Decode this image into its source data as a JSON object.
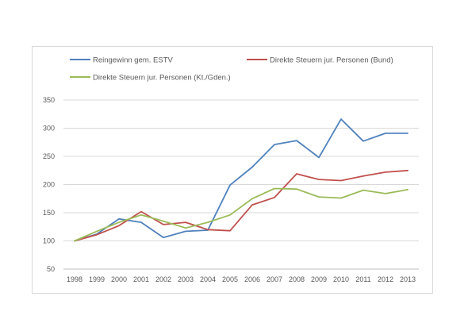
{
  "chart_data": {
    "type": "line",
    "title": "",
    "xlabel": "",
    "ylabel": "",
    "x": [
      "1998",
      "1999",
      "2000",
      "2001",
      "2002",
      "2003",
      "2004",
      "2005",
      "2006",
      "2007",
      "2008",
      "2009",
      "2010",
      "2011",
      "2012",
      "2013"
    ],
    "ylim": [
      50,
      350
    ],
    "yticks": [
      50,
      100,
      150,
      200,
      250,
      300,
      350
    ],
    "grid": true,
    "legend_position": "top",
    "series": [
      {
        "name": "Reingewinn gem. ESTV",
        "color": "#4f81bd",
        "values": [
          100,
          112,
          139,
          133,
          106,
          117,
          119,
          199,
          231,
          271,
          278,
          248,
          316,
          277,
          291,
          291
        ]
      },
      {
        "name": "Direkte Steuern jur. Personen (Bund)",
        "color": "#c0504d",
        "values": [
          100,
          111,
          127,
          152,
          129,
          133,
          120,
          118,
          164,
          177,
          219,
          209,
          207,
          215,
          222,
          225
        ]
      },
      {
        "name": "Direkte Steuern jur. Personen (Kt./Gden.)",
        "color": "#9bbb59",
        "values": [
          100,
          117,
          133,
          146,
          135,
          123,
          133,
          146,
          175,
          193,
          192,
          178,
          176,
          190,
          184,
          191
        ]
      }
    ]
  }
}
